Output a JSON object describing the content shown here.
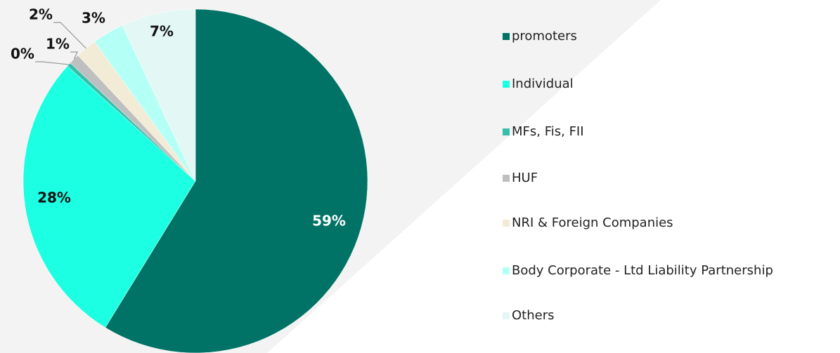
{
  "chart_data": {
    "type": "pie",
    "categories": [
      "promoters",
      "Individual",
      "MFs, Fis, FII",
      "HUF",
      "NRI & Foreign Companies",
      "Body Corporate - Ltd Liability Partnership",
      "Others"
    ],
    "values": [
      59,
      28,
      0.4,
      1,
      2,
      3,
      7
    ],
    "value_labels": [
      "59%",
      "28%",
      "0%",
      "1%",
      "2%",
      "3%",
      "7%"
    ],
    "colors": [
      "#007366",
      "#1cffe2",
      "#36bfad",
      "#bfbfbf",
      "#f2ecd6",
      "#b4fff6",
      "#e3f7f5"
    ],
    "legend": "right"
  }
}
